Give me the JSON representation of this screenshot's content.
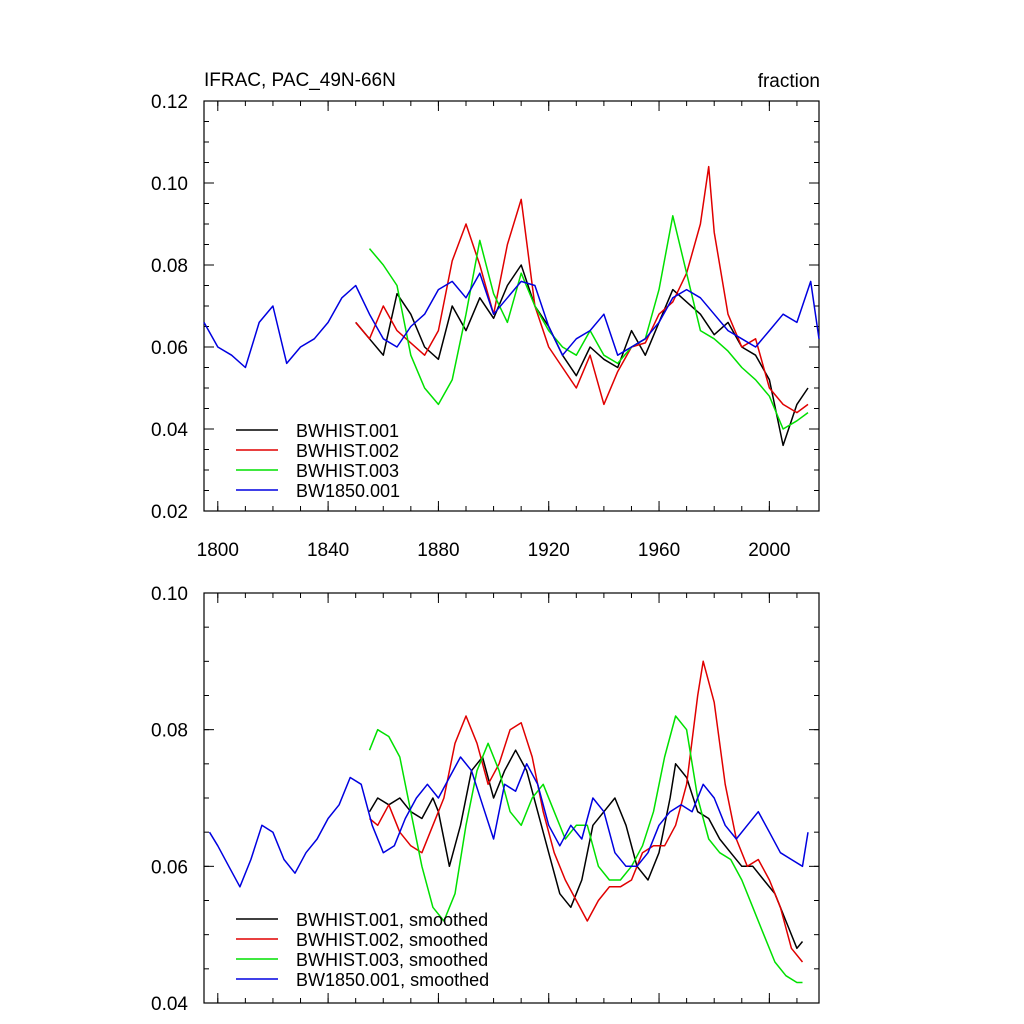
{
  "colors": {
    "BWHIST.001": "#000000",
    "BWHIST.002": "#e00000",
    "BWHIST.003": "#00e000",
    "BW1850.001": "#0000e0"
  },
  "chart_data": [
    {
      "type": "line",
      "title": "IFRAC, PAC_49N-66N",
      "units": "fraction",
      "xlabel": "",
      "ylabel": "",
      "xlim": [
        1795,
        2018
      ],
      "ylim": [
        0.02,
        0.12
      ],
      "x_ticks": [
        1800,
        1840,
        1880,
        1920,
        1960,
        2000
      ],
      "y_ticks": [
        "0.02",
        "0.04",
        "0.06",
        "0.08",
        "0.10",
        "0.12"
      ],
      "legend_position": "lower-left",
      "series": [
        {
          "name": "BWHIST.001",
          "x": [
            1850,
            1855,
            1860,
            1865,
            1870,
            1875,
            1880,
            1885,
            1890,
            1895,
            1900,
            1905,
            1910,
            1915,
            1920,
            1925,
            1930,
            1935,
            1940,
            1945,
            1950,
            1955,
            1960,
            1965,
            1970,
            1975,
            1980,
            1985,
            1990,
            1995,
            2000,
            2005,
            2010,
            2014
          ],
          "y": [
            0.066,
            0.062,
            0.058,
            0.073,
            0.068,
            0.06,
            0.057,
            0.07,
            0.064,
            0.072,
            0.067,
            0.075,
            0.08,
            0.07,
            0.065,
            0.058,
            0.053,
            0.06,
            0.057,
            0.055,
            0.064,
            0.058,
            0.066,
            0.074,
            0.071,
            0.068,
            0.063,
            0.066,
            0.06,
            0.058,
            0.052,
            0.036,
            0.046,
            0.05
          ]
        },
        {
          "name": "BWHIST.002",
          "x": [
            1850,
            1855,
            1860,
            1865,
            1870,
            1875,
            1880,
            1885,
            1890,
            1895,
            1900,
            1905,
            1910,
            1915,
            1920,
            1925,
            1930,
            1935,
            1940,
            1945,
            1950,
            1955,
            1960,
            1965,
            1970,
            1975,
            1978,
            1980,
            1985,
            1990,
            1995,
            2000,
            2005,
            2010,
            2014
          ],
          "y": [
            0.066,
            0.062,
            0.07,
            0.064,
            0.061,
            0.058,
            0.064,
            0.081,
            0.09,
            0.08,
            0.068,
            0.085,
            0.096,
            0.07,
            0.06,
            0.055,
            0.05,
            0.058,
            0.046,
            0.054,
            0.06,
            0.061,
            0.068,
            0.071,
            0.078,
            0.09,
            0.104,
            0.088,
            0.068,
            0.06,
            0.062,
            0.05,
            0.046,
            0.044,
            0.046
          ]
        },
        {
          "name": "BWHIST.003",
          "x": [
            1855,
            1860,
            1865,
            1870,
            1875,
            1880,
            1885,
            1890,
            1895,
            1900,
            1905,
            1910,
            1915,
            1920,
            1925,
            1930,
            1935,
            1940,
            1945,
            1950,
            1955,
            1960,
            1965,
            1970,
            1975,
            1980,
            1985,
            1990,
            1995,
            2000,
            2005,
            2010,
            2014
          ],
          "y": [
            0.084,
            0.08,
            0.075,
            0.058,
            0.05,
            0.046,
            0.052,
            0.068,
            0.086,
            0.073,
            0.066,
            0.078,
            0.07,
            0.064,
            0.06,
            0.058,
            0.064,
            0.058,
            0.056,
            0.06,
            0.062,
            0.074,
            0.092,
            0.078,
            0.064,
            0.062,
            0.059,
            0.055,
            0.052,
            0.048,
            0.04,
            0.042,
            0.044
          ]
        },
        {
          "name": "BW1850.001",
          "x": [
            1795,
            1800,
            1805,
            1810,
            1815,
            1820,
            1825,
            1830,
            1835,
            1840,
            1845,
            1850,
            1855,
            1860,
            1865,
            1870,
            1875,
            1880,
            1885,
            1890,
            1895,
            1900,
            1905,
            1910,
            1915,
            1920,
            1925,
            1930,
            1935,
            1940,
            1945,
            1950,
            1955,
            1960,
            1965,
            1970,
            1975,
            1980,
            1985,
            1990,
            1995,
            2000,
            2005,
            2010,
            2015,
            2018
          ],
          "y": [
            0.066,
            0.06,
            0.058,
            0.055,
            0.066,
            0.07,
            0.056,
            0.06,
            0.062,
            0.066,
            0.072,
            0.075,
            0.068,
            0.062,
            0.06,
            0.065,
            0.068,
            0.074,
            0.076,
            0.072,
            0.078,
            0.068,
            0.072,
            0.076,
            0.075,
            0.065,
            0.058,
            0.062,
            0.064,
            0.068,
            0.058,
            0.06,
            0.062,
            0.066,
            0.072,
            0.074,
            0.072,
            0.068,
            0.064,
            0.062,
            0.06,
            0.064,
            0.068,
            0.066,
            0.076,
            0.062
          ]
        }
      ]
    },
    {
      "type": "line",
      "title": "",
      "xlabel": "",
      "ylabel": "",
      "xlim": [
        1795,
        2018
      ],
      "ylim": [
        0.04,
        0.1
      ],
      "x_ticks": [
        1800,
        1840,
        1880,
        1920,
        1960,
        2000
      ],
      "y_ticks": [
        "0.04",
        "0.06",
        "0.08",
        "0.10"
      ],
      "legend_position": "lower-left",
      "series": [
        {
          "name": "BWHIST.001, smoothed",
          "x": [
            1855,
            1858,
            1862,
            1866,
            1870,
            1874,
            1878,
            1880,
            1884,
            1888,
            1892,
            1896,
            1900,
            1904,
            1908,
            1912,
            1916,
            1920,
            1924,
            1928,
            1932,
            1936,
            1940,
            1944,
            1948,
            1952,
            1956,
            1960,
            1964,
            1966,
            1970,
            1974,
            1978,
            1982,
            1986,
            1990,
            1994,
            1998,
            2002,
            2006,
            2010,
            2012
          ],
          "y": [
            0.068,
            0.07,
            0.069,
            0.07,
            0.068,
            0.067,
            0.07,
            0.068,
            0.06,
            0.066,
            0.074,
            0.076,
            0.07,
            0.074,
            0.077,
            0.074,
            0.068,
            0.062,
            0.056,
            0.054,
            0.058,
            0.066,
            0.068,
            0.07,
            0.066,
            0.06,
            0.058,
            0.062,
            0.07,
            0.075,
            0.073,
            0.068,
            0.067,
            0.064,
            0.062,
            0.06,
            0.06,
            0.058,
            0.056,
            0.052,
            0.048,
            0.049
          ]
        },
        {
          "name": "BWHIST.002, smoothed",
          "x": [
            1855,
            1858,
            1862,
            1866,
            1870,
            1874,
            1878,
            1882,
            1886,
            1890,
            1894,
            1898,
            1902,
            1906,
            1910,
            1914,
            1918,
            1922,
            1926,
            1930,
            1934,
            1938,
            1942,
            1946,
            1950,
            1954,
            1958,
            1962,
            1966,
            1970,
            1974,
            1976,
            1980,
            1984,
            1988,
            1992,
            1996,
            2000,
            2004,
            2008,
            2012
          ],
          "y": [
            0.067,
            0.066,
            0.069,
            0.065,
            0.063,
            0.062,
            0.066,
            0.07,
            0.078,
            0.082,
            0.078,
            0.072,
            0.075,
            0.08,
            0.081,
            0.076,
            0.068,
            0.062,
            0.058,
            0.055,
            0.052,
            0.055,
            0.057,
            0.057,
            0.058,
            0.062,
            0.063,
            0.063,
            0.066,
            0.072,
            0.085,
            0.09,
            0.084,
            0.072,
            0.064,
            0.06,
            0.061,
            0.058,
            0.054,
            0.048,
            0.046
          ]
        },
        {
          "name": "BWHIST.003, smoothed",
          "x": [
            1855,
            1858,
            1862,
            1866,
            1870,
            1874,
            1878,
            1882,
            1886,
            1890,
            1894,
            1898,
            1902,
            1906,
            1910,
            1914,
            1918,
            1922,
            1926,
            1930,
            1934,
            1938,
            1942,
            1946,
            1950,
            1954,
            1958,
            1962,
            1966,
            1970,
            1974,
            1978,
            1982,
            1986,
            1990,
            1994,
            1998,
            2002,
            2006,
            2010,
            2012
          ],
          "y": [
            0.077,
            0.08,
            0.079,
            0.076,
            0.068,
            0.06,
            0.054,
            0.052,
            0.056,
            0.066,
            0.074,
            0.078,
            0.074,
            0.068,
            0.066,
            0.07,
            0.072,
            0.068,
            0.064,
            0.066,
            0.066,
            0.06,
            0.058,
            0.058,
            0.06,
            0.063,
            0.068,
            0.076,
            0.082,
            0.08,
            0.07,
            0.064,
            0.062,
            0.061,
            0.058,
            0.054,
            0.05,
            0.046,
            0.044,
            0.043,
            0.043
          ]
        },
        {
          "name": "BW1850.001, smoothed",
          "x": [
            1797,
            1800,
            1804,
            1808,
            1812,
            1816,
            1820,
            1824,
            1828,
            1832,
            1836,
            1840,
            1844,
            1848,
            1852,
            1856,
            1860,
            1864,
            1868,
            1872,
            1876,
            1880,
            1884,
            1888,
            1892,
            1896,
            1900,
            1904,
            1908,
            1912,
            1916,
            1920,
            1924,
            1928,
            1932,
            1936,
            1940,
            1944,
            1948,
            1952,
            1956,
            1960,
            1964,
            1968,
            1972,
            1976,
            1980,
            1984,
            1988,
            1992,
            1996,
            2000,
            2004,
            2008,
            2012,
            2014
          ],
          "y": [
            0.065,
            0.063,
            0.06,
            0.057,
            0.061,
            0.066,
            0.065,
            0.061,
            0.059,
            0.062,
            0.064,
            0.067,
            0.069,
            0.073,
            0.072,
            0.066,
            0.062,
            0.063,
            0.067,
            0.07,
            0.072,
            0.07,
            0.073,
            0.076,
            0.074,
            0.069,
            0.064,
            0.072,
            0.071,
            0.075,
            0.072,
            0.066,
            0.063,
            0.066,
            0.064,
            0.07,
            0.068,
            0.062,
            0.06,
            0.06,
            0.062,
            0.066,
            0.068,
            0.069,
            0.068,
            0.072,
            0.07,
            0.066,
            0.064,
            0.066,
            0.068,
            0.065,
            0.062,
            0.061,
            0.06,
            0.065
          ]
        }
      ]
    }
  ]
}
